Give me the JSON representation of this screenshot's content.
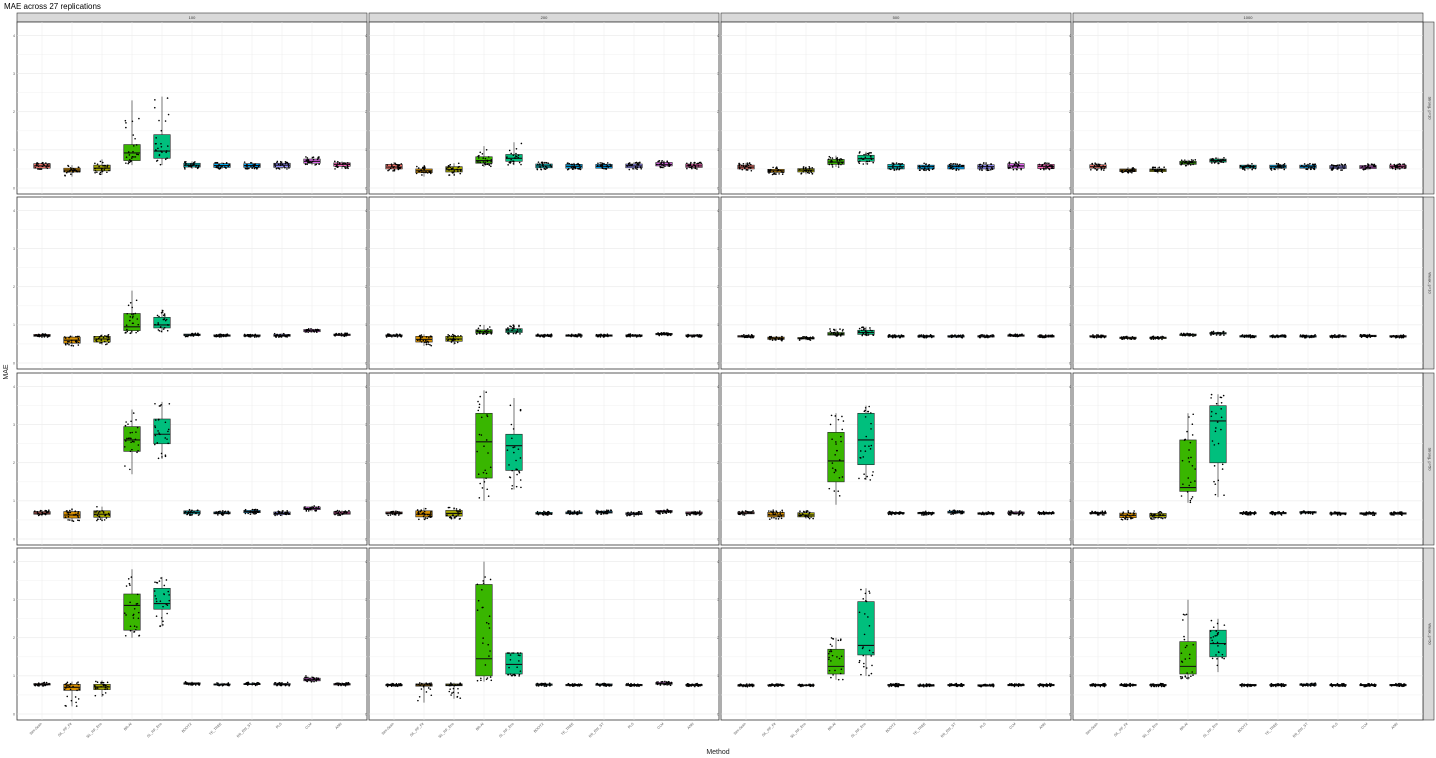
{
  "chart_data": {
    "type": "boxplot",
    "title": "MAE across 27 replications",
    "xlabel": "Method",
    "ylabel": "MAE",
    "ylim": [
      0,
      4.2
    ],
    "y_ticks": [
      0,
      1,
      2,
      3,
      4
    ],
    "column_facets": [
      "100",
      "200",
      "500",
      "1000"
    ],
    "row_facets": [
      "Strong, p=10",
      "Weak, p=10",
      "Strong, p=50",
      "Weak, p=50"
    ],
    "methods": [
      "Sim-Scan",
      "SiL_RF_Fit",
      "SiL_RF_Ens",
      "BR-AI",
      "SL_RF_Ens",
      "BOOTX",
      "TE_TREE",
      "RR_EW_ST",
      "PLS",
      "CLM",
      "ANN"
    ],
    "colors": [
      "#F8766D",
      "#D89000",
      "#A3A500",
      "#39B600",
      "#00BF7D",
      "#00BFC4",
      "#00B0F6",
      "#00A9FF",
      "#9590FF",
      "#E76BF3",
      "#FF62BC"
    ],
    "panels": [
      {
        "row": 0,
        "col": 0,
        "medians": [
          0.58,
          0.47,
          0.52,
          0.92,
          0.97,
          0.6,
          0.59,
          0.59,
          0.6,
          0.7,
          0.62
        ],
        "q1": [
          0.52,
          0.42,
          0.45,
          0.72,
          0.78,
          0.55,
          0.54,
          0.54,
          0.54,
          0.65,
          0.57
        ],
        "q3": [
          0.64,
          0.52,
          0.6,
          1.14,
          1.4,
          0.65,
          0.64,
          0.64,
          0.65,
          0.76,
          0.66
        ],
        "wlo": [
          0.48,
          0.3,
          0.35,
          0.6,
          0.6,
          0.5,
          0.5,
          0.5,
          0.5,
          0.6,
          0.5
        ],
        "whi": [
          0.68,
          0.6,
          0.75,
          2.3,
          2.4,
          0.7,
          0.68,
          0.68,
          0.7,
          0.82,
          0.7
        ]
      },
      {
        "row": 0,
        "col": 1,
        "medians": [
          0.55,
          0.45,
          0.48,
          0.72,
          0.78,
          0.58,
          0.57,
          0.57,
          0.58,
          0.62,
          0.58
        ],
        "q1": [
          0.5,
          0.4,
          0.42,
          0.65,
          0.7,
          0.53,
          0.52,
          0.52,
          0.53,
          0.58,
          0.54
        ],
        "q3": [
          0.62,
          0.5,
          0.56,
          0.82,
          0.88,
          0.63,
          0.62,
          0.62,
          0.63,
          0.67,
          0.63
        ],
        "wlo": [
          0.45,
          0.3,
          0.32,
          0.55,
          0.6,
          0.48,
          0.48,
          0.48,
          0.48,
          0.52,
          0.5
        ],
        "whi": [
          0.68,
          0.58,
          0.65,
          1.1,
          1.2,
          0.68,
          0.66,
          0.66,
          0.68,
          0.72,
          0.68
        ]
      },
      {
        "row": 0,
        "col": 2,
        "medians": [
          0.55,
          0.45,
          0.47,
          0.68,
          0.77,
          0.56,
          0.56,
          0.56,
          0.56,
          0.58,
          0.57
        ],
        "q1": [
          0.5,
          0.41,
          0.42,
          0.62,
          0.7,
          0.5,
          0.5,
          0.5,
          0.5,
          0.52,
          0.51
        ],
        "q3": [
          0.6,
          0.49,
          0.51,
          0.75,
          0.86,
          0.62,
          0.6,
          0.6,
          0.61,
          0.64,
          0.62
        ],
        "wlo": [
          0.45,
          0.35,
          0.36,
          0.55,
          0.62,
          0.46,
          0.46,
          0.46,
          0.46,
          0.48,
          0.48
        ],
        "whi": [
          0.66,
          0.55,
          0.56,
          0.85,
          0.95,
          0.66,
          0.65,
          0.65,
          0.66,
          0.68,
          0.66
        ]
      },
      {
        "row": 0,
        "col": 3,
        "medians": [
          0.56,
          0.47,
          0.47,
          0.66,
          0.72,
          0.56,
          0.56,
          0.56,
          0.55,
          0.55,
          0.56
        ],
        "q1": [
          0.52,
          0.43,
          0.43,
          0.62,
          0.68,
          0.52,
          0.52,
          0.52,
          0.51,
          0.51,
          0.52
        ],
        "q3": [
          0.61,
          0.5,
          0.5,
          0.7,
          0.76,
          0.6,
          0.6,
          0.6,
          0.59,
          0.59,
          0.6
        ],
        "wlo": [
          0.47,
          0.38,
          0.38,
          0.58,
          0.64,
          0.47,
          0.47,
          0.47,
          0.47,
          0.47,
          0.48
        ],
        "whi": [
          0.66,
          0.55,
          0.55,
          0.74,
          0.8,
          0.64,
          0.64,
          0.64,
          0.63,
          0.63,
          0.64
        ]
      },
      {
        "row": 1,
        "col": 0,
        "medians": [
          0.72,
          0.6,
          0.63,
          0.95,
          1.0,
          0.74,
          0.72,
          0.72,
          0.72,
          0.85,
          0.74
        ],
        "q1": [
          0.7,
          0.52,
          0.55,
          0.85,
          0.92,
          0.72,
          0.7,
          0.7,
          0.7,
          0.82,
          0.72
        ],
        "q3": [
          0.75,
          0.68,
          0.7,
          1.3,
          1.2,
          0.76,
          0.74,
          0.74,
          0.75,
          0.88,
          0.76
        ],
        "wlo": [
          0.68,
          0.45,
          0.48,
          0.78,
          0.8,
          0.69,
          0.68,
          0.68,
          0.68,
          0.8,
          0.7
        ],
        "whi": [
          0.77,
          0.72,
          0.75,
          1.9,
          1.4,
          0.78,
          0.76,
          0.76,
          0.78,
          0.9,
          0.78
        ]
      },
      {
        "row": 1,
        "col": 1,
        "medians": [
          0.72,
          0.62,
          0.63,
          0.82,
          0.84,
          0.72,
          0.72,
          0.72,
          0.72,
          0.76,
          0.72
        ],
        "q1": [
          0.7,
          0.55,
          0.57,
          0.78,
          0.8,
          0.7,
          0.7,
          0.7,
          0.7,
          0.74,
          0.7
        ],
        "q3": [
          0.74,
          0.7,
          0.7,
          0.87,
          0.9,
          0.74,
          0.74,
          0.74,
          0.74,
          0.78,
          0.74
        ],
        "wlo": [
          0.68,
          0.45,
          0.48,
          0.75,
          0.76,
          0.68,
          0.68,
          0.68,
          0.68,
          0.72,
          0.68
        ],
        "whi": [
          0.76,
          0.75,
          0.75,
          1.0,
          1.0,
          0.76,
          0.76,
          0.76,
          0.76,
          0.8,
          0.76
        ]
      },
      {
        "row": 1,
        "col": 2,
        "medians": [
          0.7,
          0.65,
          0.65,
          0.76,
          0.8,
          0.7,
          0.7,
          0.7,
          0.7,
          0.72,
          0.7
        ],
        "q1": [
          0.68,
          0.62,
          0.63,
          0.73,
          0.75,
          0.68,
          0.68,
          0.68,
          0.68,
          0.7,
          0.68
        ],
        "q3": [
          0.72,
          0.68,
          0.67,
          0.8,
          0.86,
          0.72,
          0.72,
          0.72,
          0.72,
          0.74,
          0.72
        ],
        "wlo": [
          0.66,
          0.58,
          0.6,
          0.7,
          0.72,
          0.66,
          0.66,
          0.66,
          0.66,
          0.68,
          0.66
        ],
        "whi": [
          0.74,
          0.7,
          0.7,
          0.9,
          0.95,
          0.74,
          0.74,
          0.74,
          0.74,
          0.76,
          0.74
        ]
      },
      {
        "row": 1,
        "col": 3,
        "medians": [
          0.7,
          0.66,
          0.66,
          0.74,
          0.78,
          0.7,
          0.7,
          0.7,
          0.7,
          0.71,
          0.7
        ],
        "q1": [
          0.68,
          0.64,
          0.64,
          0.72,
          0.76,
          0.68,
          0.68,
          0.68,
          0.68,
          0.69,
          0.68
        ],
        "q3": [
          0.72,
          0.68,
          0.68,
          0.76,
          0.8,
          0.72,
          0.72,
          0.72,
          0.72,
          0.73,
          0.72
        ],
        "wlo": [
          0.66,
          0.62,
          0.62,
          0.7,
          0.73,
          0.66,
          0.66,
          0.66,
          0.66,
          0.67,
          0.66
        ],
        "whi": [
          0.74,
          0.7,
          0.7,
          0.78,
          0.83,
          0.74,
          0.74,
          0.74,
          0.74,
          0.75,
          0.74
        ]
      },
      {
        "row": 2,
        "col": 0,
        "medians": [
          0.68,
          0.63,
          0.65,
          2.6,
          2.75,
          0.7,
          0.68,
          0.72,
          0.67,
          0.8,
          0.68
        ],
        "q1": [
          0.65,
          0.55,
          0.57,
          2.3,
          2.5,
          0.66,
          0.66,
          0.69,
          0.64,
          0.77,
          0.65
        ],
        "q3": [
          0.72,
          0.72,
          0.74,
          2.95,
          3.15,
          0.74,
          0.71,
          0.75,
          0.71,
          0.84,
          0.72
        ],
        "wlo": [
          0.6,
          0.45,
          0.48,
          1.7,
          2.1,
          0.62,
          0.62,
          0.65,
          0.6,
          0.73,
          0.62
        ],
        "whi": [
          0.76,
          0.8,
          0.85,
          3.4,
          3.6,
          0.77,
          0.74,
          0.78,
          0.75,
          0.87,
          0.75
        ]
      },
      {
        "row": 2,
        "col": 1,
        "medians": [
          0.68,
          0.65,
          0.67,
          2.55,
          2.45,
          0.67,
          0.68,
          0.7,
          0.66,
          0.72,
          0.68
        ],
        "q1": [
          0.66,
          0.58,
          0.6,
          1.6,
          1.8,
          0.65,
          0.66,
          0.68,
          0.64,
          0.7,
          0.66
        ],
        "q3": [
          0.71,
          0.74,
          0.75,
          3.3,
          2.75,
          0.7,
          0.71,
          0.73,
          0.69,
          0.75,
          0.71
        ],
        "wlo": [
          0.62,
          0.5,
          0.52,
          1.0,
          1.3,
          0.62,
          0.63,
          0.65,
          0.6,
          0.66,
          0.62
        ],
        "whi": [
          0.74,
          0.82,
          0.83,
          3.9,
          3.7,
          0.73,
          0.74,
          0.76,
          0.72,
          0.78,
          0.74
        ]
      },
      {
        "row": 2,
        "col": 2,
        "medians": [
          0.68,
          0.63,
          0.63,
          2.05,
          2.6,
          0.68,
          0.68,
          0.7,
          0.67,
          0.68,
          0.68
        ],
        "q1": [
          0.66,
          0.58,
          0.58,
          1.5,
          1.95,
          0.66,
          0.66,
          0.68,
          0.65,
          0.66,
          0.66
        ],
        "q3": [
          0.71,
          0.7,
          0.69,
          2.8,
          3.3,
          0.7,
          0.7,
          0.73,
          0.69,
          0.71,
          0.7
        ],
        "wlo": [
          0.63,
          0.52,
          0.53,
          0.9,
          1.55,
          0.63,
          0.63,
          0.65,
          0.62,
          0.63,
          0.64
        ],
        "whi": [
          0.74,
          0.76,
          0.74,
          3.3,
          3.5,
          0.72,
          0.73,
          0.76,
          0.72,
          0.74,
          0.73
        ]
      },
      {
        "row": 2,
        "col": 3,
        "medians": [
          0.68,
          0.62,
          0.62,
          1.35,
          3.1,
          0.68,
          0.68,
          0.7,
          0.67,
          0.67,
          0.67
        ],
        "q1": [
          0.66,
          0.56,
          0.57,
          1.25,
          2.0,
          0.66,
          0.66,
          0.68,
          0.65,
          0.65,
          0.65
        ],
        "q3": [
          0.7,
          0.68,
          0.67,
          2.6,
          3.5,
          0.7,
          0.7,
          0.72,
          0.69,
          0.69,
          0.69
        ],
        "wlo": [
          0.63,
          0.5,
          0.52,
          0.95,
          1.1,
          0.63,
          0.63,
          0.65,
          0.62,
          0.62,
          0.62
        ],
        "whi": [
          0.73,
          0.74,
          0.72,
          3.3,
          3.8,
          0.72,
          0.72,
          0.74,
          0.71,
          0.71,
          0.71
        ]
      },
      {
        "row": 3,
        "col": 0,
        "medians": [
          0.78,
          0.7,
          0.71,
          2.85,
          2.9,
          0.8,
          0.77,
          0.78,
          0.78,
          0.9,
          0.78
        ],
        "q1": [
          0.76,
          0.62,
          0.64,
          2.2,
          2.75,
          0.78,
          0.76,
          0.77,
          0.76,
          0.87,
          0.76
        ],
        "q3": [
          0.8,
          0.78,
          0.78,
          3.15,
          3.3,
          0.82,
          0.79,
          0.8,
          0.8,
          0.94,
          0.8
        ],
        "wlo": [
          0.73,
          0.2,
          0.45,
          2.0,
          2.3,
          0.76,
          0.74,
          0.75,
          0.74,
          0.84,
          0.74
        ],
        "whi": [
          0.83,
          0.85,
          0.88,
          3.8,
          3.6,
          0.85,
          0.82,
          0.83,
          0.83,
          1.0,
          0.83
        ]
      },
      {
        "row": 3,
        "col": 1,
        "medians": [
          0.76,
          0.76,
          0.76,
          1.45,
          1.3,
          0.77,
          0.76,
          0.77,
          0.76,
          0.8,
          0.76
        ],
        "q1": [
          0.74,
          0.73,
          0.74,
          1.0,
          1.05,
          0.75,
          0.74,
          0.75,
          0.74,
          0.78,
          0.74
        ],
        "q3": [
          0.78,
          0.79,
          0.79,
          3.4,
          1.6,
          0.79,
          0.78,
          0.79,
          0.78,
          0.83,
          0.78
        ],
        "wlo": [
          0.72,
          0.3,
          0.4,
          0.85,
          1.0,
          0.73,
          0.73,
          0.73,
          0.72,
          0.75,
          0.72
        ],
        "whi": [
          0.8,
          0.82,
          0.82,
          4.0,
          1.6,
          0.81,
          0.8,
          0.81,
          0.8,
          0.86,
          0.8
        ]
      },
      {
        "row": 3,
        "col": 2,
        "medians": [
          0.75,
          0.75,
          0.75,
          1.25,
          1.8,
          0.76,
          0.75,
          0.76,
          0.75,
          0.76,
          0.76
        ],
        "q1": [
          0.73,
          0.74,
          0.74,
          1.05,
          1.55,
          0.74,
          0.73,
          0.74,
          0.73,
          0.74,
          0.74
        ],
        "q3": [
          0.77,
          0.77,
          0.77,
          1.7,
          2.95,
          0.78,
          0.77,
          0.78,
          0.77,
          0.78,
          0.78
        ],
        "wlo": [
          0.71,
          0.72,
          0.72,
          0.9,
          1.0,
          0.72,
          0.71,
          0.72,
          0.71,
          0.72,
          0.72
        ],
        "whi": [
          0.79,
          0.79,
          0.79,
          2.0,
          3.3,
          0.8,
          0.79,
          0.8,
          0.79,
          0.8,
          0.8
        ]
      },
      {
        "row": 3,
        "col": 3,
        "medians": [
          0.76,
          0.76,
          0.76,
          1.25,
          1.85,
          0.76,
          0.76,
          0.77,
          0.76,
          0.76,
          0.76
        ],
        "q1": [
          0.74,
          0.74,
          0.74,
          1.05,
          1.5,
          0.74,
          0.74,
          0.75,
          0.74,
          0.74,
          0.74
        ],
        "q3": [
          0.78,
          0.78,
          0.78,
          1.9,
          2.2,
          0.78,
          0.78,
          0.79,
          0.78,
          0.78,
          0.78
        ],
        "wlo": [
          0.72,
          0.72,
          0.72,
          0.9,
          1.1,
          0.72,
          0.72,
          0.73,
          0.72,
          0.72,
          0.72
        ],
        "whi": [
          0.8,
          0.8,
          0.8,
          3.0,
          2.5,
          0.8,
          0.8,
          0.81,
          0.8,
          0.8,
          0.8
        ]
      }
    ]
  }
}
